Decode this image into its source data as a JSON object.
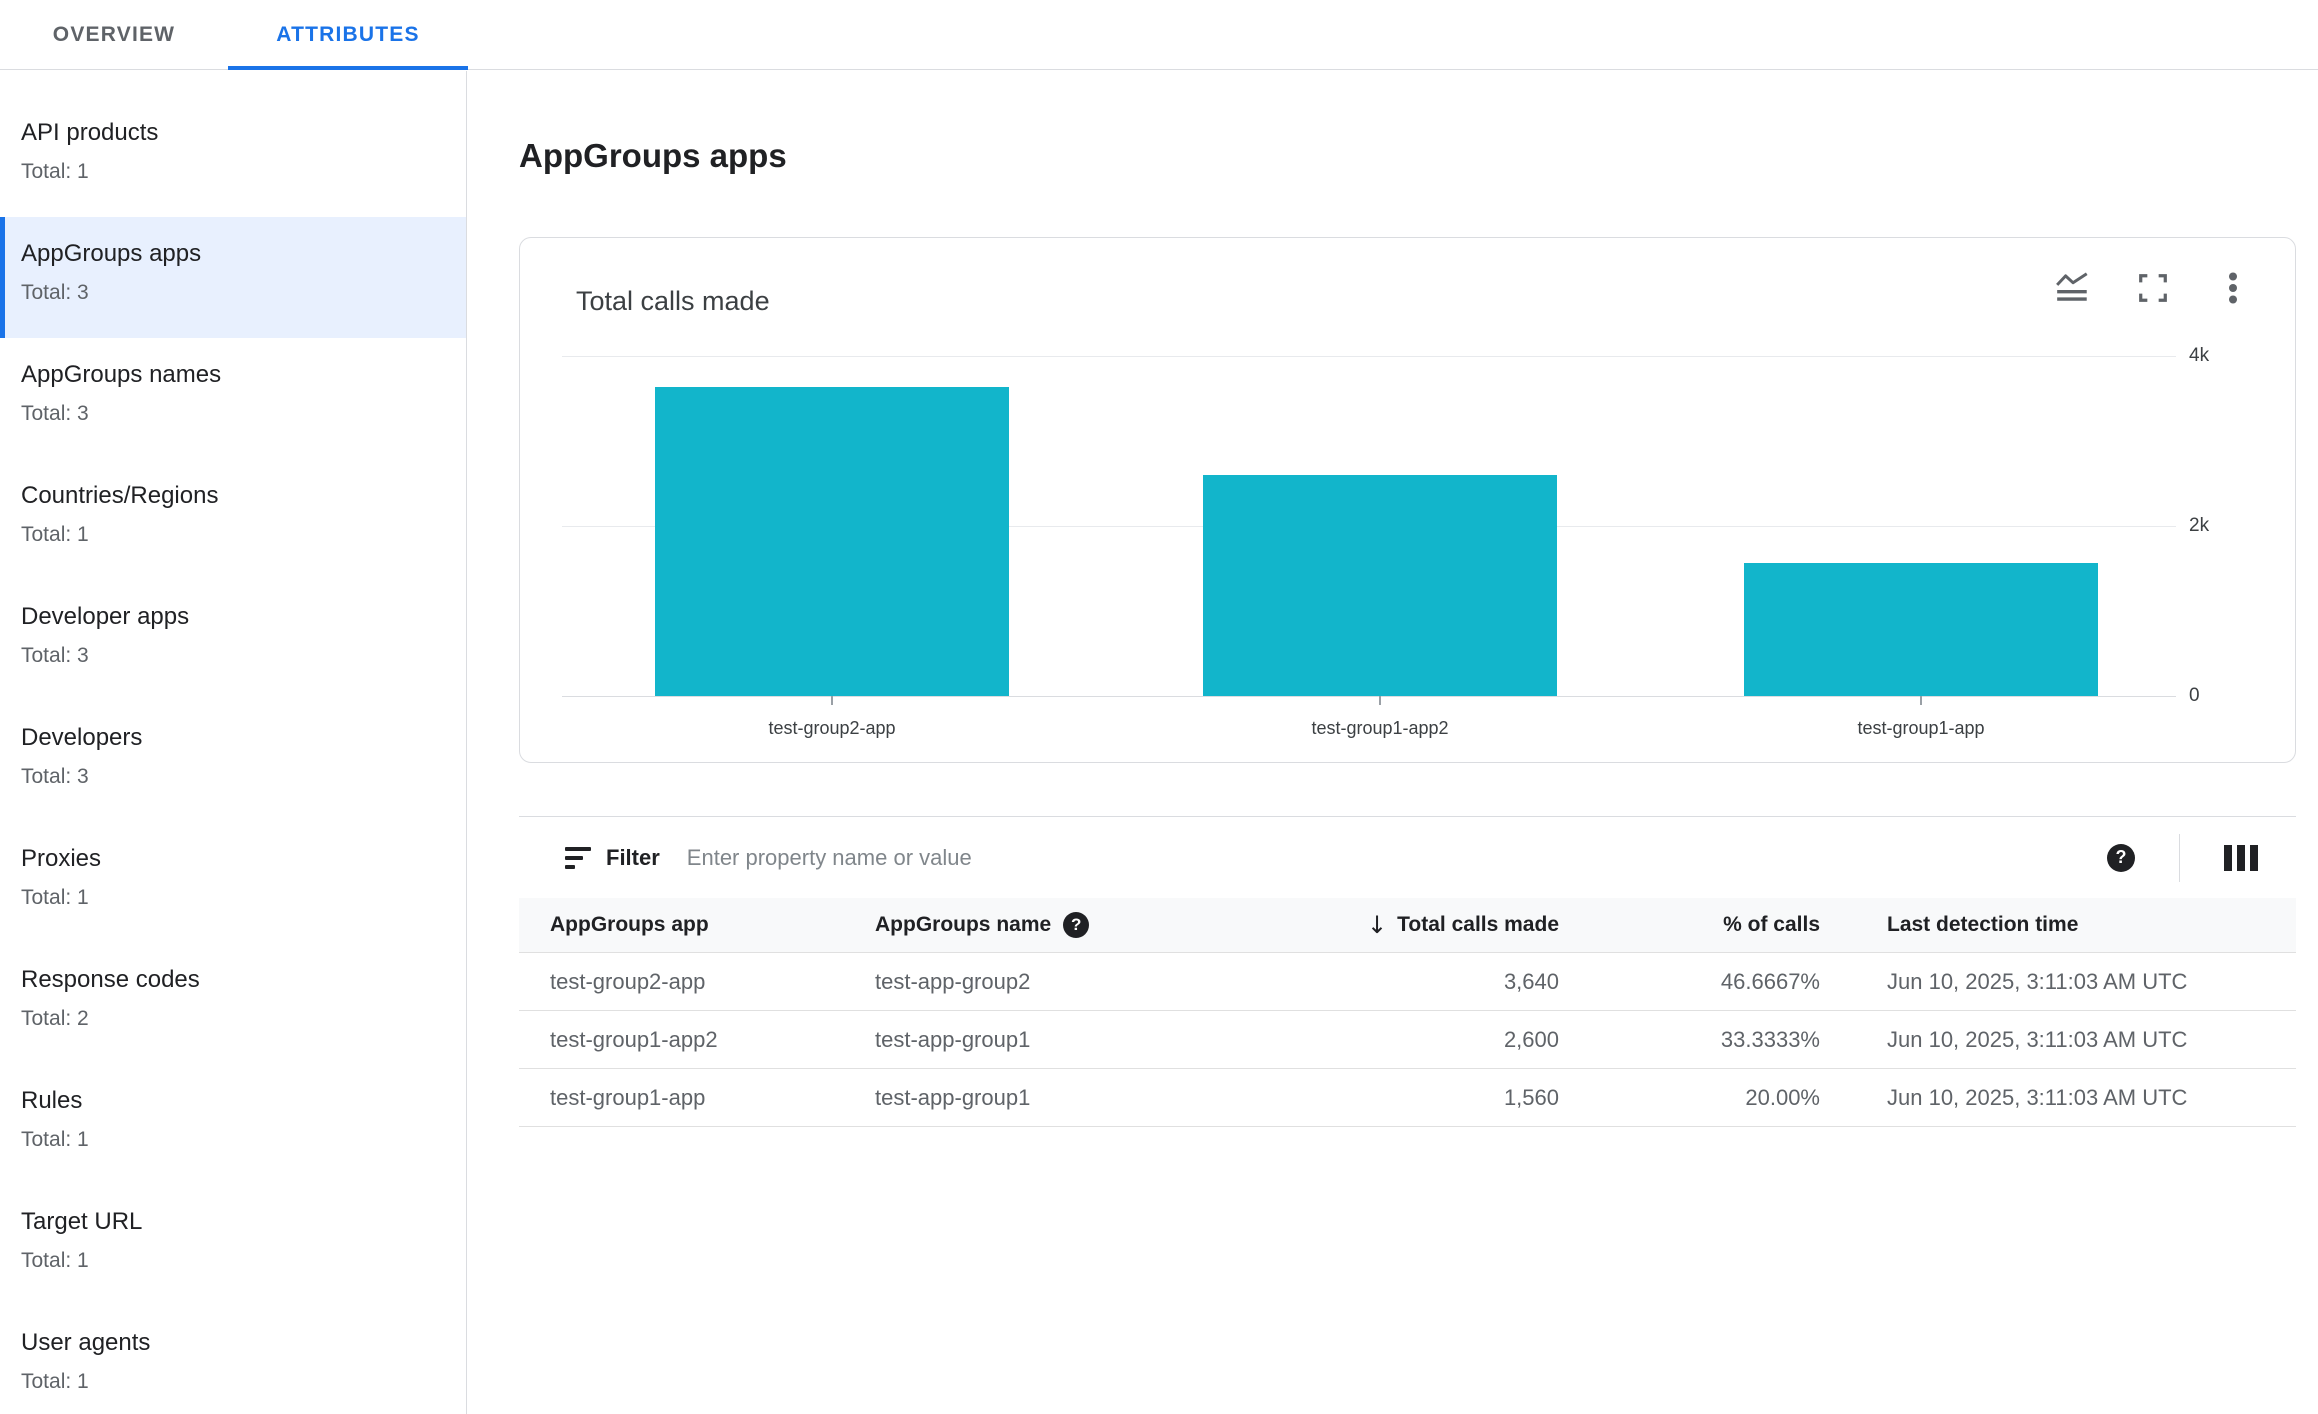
{
  "colors": {
    "accent_blue": "#1a73e8",
    "bar_teal": "#12b5cb",
    "selected_item_bg": "#e8f0fe"
  },
  "tabs": [
    {
      "label": "OVERVIEW",
      "active": false
    },
    {
      "label": "ATTRIBUTES",
      "active": true
    }
  ],
  "sidebar": {
    "items": [
      {
        "label": "API products",
        "total": "Total: 1",
        "selected": false
      },
      {
        "label": "AppGroups apps",
        "total": "Total: 3",
        "selected": true
      },
      {
        "label": "AppGroups names",
        "total": "Total: 3",
        "selected": false
      },
      {
        "label": "Countries/Regions",
        "total": "Total: 1",
        "selected": false
      },
      {
        "label": "Developer apps",
        "total": "Total: 3",
        "selected": false
      },
      {
        "label": "Developers",
        "total": "Total: 3",
        "selected": false
      },
      {
        "label": "Proxies",
        "total": "Total: 1",
        "selected": false
      },
      {
        "label": "Response codes",
        "total": "Total: 2",
        "selected": false
      },
      {
        "label": "Rules",
        "total": "Total: 1",
        "selected": false
      },
      {
        "label": "Target URL",
        "total": "Total: 1",
        "selected": false
      },
      {
        "label": "User agents",
        "total": "Total: 1",
        "selected": false
      }
    ]
  },
  "chart_data": {
    "type": "bar",
    "title": "Total calls made",
    "categories": [
      "test-group2-app",
      "test-group1-app2",
      "test-group1-app"
    ],
    "values": [
      3640,
      2600,
      1560
    ],
    "ylim": [
      0,
      4000
    ],
    "yticks": [
      {
        "value": 4000,
        "label": "4k"
      },
      {
        "value": 2000,
        "label": "2k"
      },
      {
        "value": 0,
        "label": "0"
      }
    ],
    "bar_color": "#12b5cb",
    "grid": true,
    "legend": false,
    "yaxis_position": "right"
  },
  "main": {
    "title": "AppGroups apps",
    "chart_card": {
      "title": "Total calls made",
      "icons": [
        "area-chart-icon",
        "fullscreen-icon",
        "more-vert-icon"
      ]
    },
    "filter": {
      "label": "Filter",
      "placeholder": "Enter property name or value"
    },
    "table": {
      "columns": [
        {
          "label": "AppGroups app"
        },
        {
          "label": "AppGroups name",
          "help_icon": true
        },
        {
          "label": "Total calls made",
          "sort": "desc"
        },
        {
          "label": "% of calls"
        },
        {
          "label": "Last detection time"
        }
      ],
      "rows": [
        {
          "app": "test-group2-app",
          "name": "test-app-group2",
          "calls": "3,640",
          "pct": "46.6667%",
          "time": "Jun 10, 2025, 3:11:03 AM UTC"
        },
        {
          "app": "test-group1-app2",
          "name": "test-app-group1",
          "calls": "2,600",
          "pct": "33.3333%",
          "time": "Jun 10, 2025, 3:11:03 AM UTC"
        },
        {
          "app": "test-group1-app",
          "name": "test-app-group1",
          "calls": "1,560",
          "pct": "20.00%",
          "time": "Jun 10, 2025, 3:11:03 AM UTC"
        }
      ]
    }
  }
}
